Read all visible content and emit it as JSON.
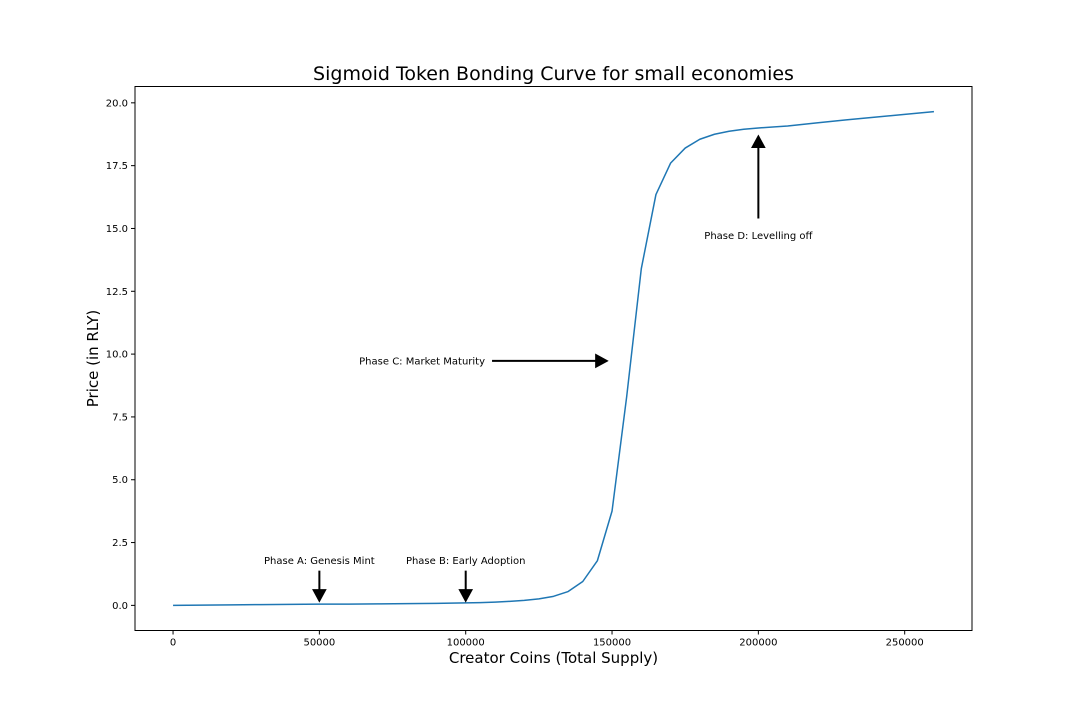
{
  "chart_data": {
    "type": "line",
    "title": "Sigmoid Token Bonding Curve for small economies",
    "xlabel": "Creator Coins (Total Supply)",
    "ylabel": "Price (in RLY)",
    "xlim": [
      -13000,
      273000
    ],
    "ylim": [
      -1.0,
      20.65
    ],
    "x_ticks": [
      0,
      50000,
      100000,
      150000,
      200000,
      250000
    ],
    "x_tick_labels": [
      "0",
      "50000",
      "100000",
      "150000",
      "200000",
      "250000"
    ],
    "y_ticks": [
      0.0,
      2.5,
      5.0,
      7.5,
      10.0,
      12.5,
      15.0,
      17.5,
      20.0
    ],
    "y_tick_labels": [
      "0.0",
      "2.5",
      "5.0",
      "7.5",
      "10.0",
      "12.5",
      "15.0",
      "17.5",
      "20.0"
    ],
    "grid": false,
    "series": [
      {
        "color": "#1f77b4",
        "x": [
          0,
          10000,
          20000,
          30000,
          40000,
          50000,
          60000,
          70000,
          80000,
          90000,
          100000,
          105000,
          110000,
          115000,
          120000,
          125000,
          130000,
          135000,
          140000,
          145000,
          150000,
          155000,
          160000,
          165000,
          170000,
          175000,
          180000,
          185000,
          190000,
          195000,
          200000,
          210000,
          220000,
          230000,
          240000,
          250000,
          260000
        ],
        "y": [
          0.0,
          0.01,
          0.02,
          0.03,
          0.04,
          0.05,
          0.05,
          0.06,
          0.07,
          0.08,
          0.1,
          0.11,
          0.13,
          0.16,
          0.2,
          0.26,
          0.36,
          0.55,
          0.95,
          1.78,
          3.75,
          8.3,
          13.4,
          16.35,
          17.6,
          18.2,
          18.55,
          18.75,
          18.87,
          18.95,
          19.0,
          19.08,
          19.2,
          19.32,
          19.43,
          19.54,
          19.65
        ]
      }
    ],
    "annotations": [
      {
        "text": "Phase A: Genesis Mint",
        "text_at": [
          50000,
          1.78
        ],
        "arrow_to": [
          50000,
          0.15
        ]
      },
      {
        "text": "Phase B: Early Adoption",
        "text_at": [
          100000,
          1.78
        ],
        "arrow_to": [
          100000,
          0.15
        ]
      },
      {
        "text": "Phase C: Market Maturity",
        "text_at": [
          109000,
          9.73
        ],
        "arrow_to": [
          148500,
          9.73
        ]
      },
      {
        "text": "Phase D: Levelling off",
        "text_at": [
          200000,
          14.72
        ],
        "arrow_to": [
          200000,
          18.7
        ]
      }
    ]
  }
}
